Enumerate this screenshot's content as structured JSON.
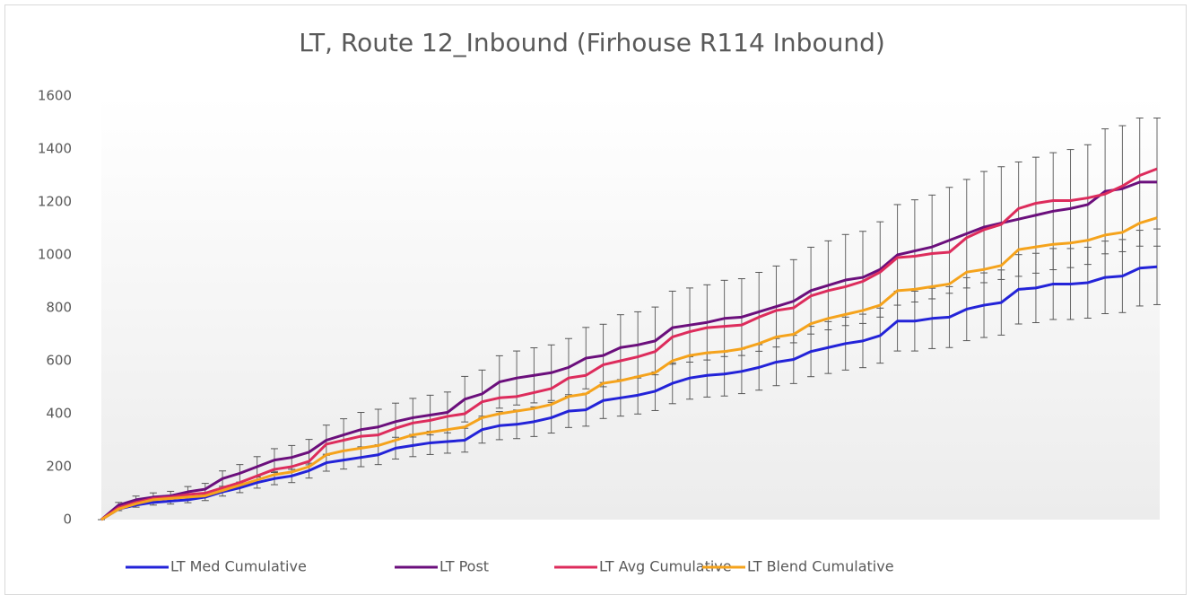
{
  "chart_data": {
    "type": "line",
    "title": "LT, Route 12_Inbound (Firhouse R114 Inbound)",
    "categories": [
      null,
      null,
      null,
      null,
      null,
      null,
      null,
      null,
      null,
      null,
      null,
      null,
      null,
      null,
      null,
      null,
      null,
      null,
      null,
      null,
      null,
      null,
      null,
      null,
      null,
      null,
      null,
      null,
      null,
      null,
      null,
      null,
      null,
      null,
      null,
      null,
      null,
      null,
      null,
      null,
      null,
      null,
      null,
      null,
      null,
      null,
      null,
      null,
      null,
      null,
      null,
      null,
      null,
      null,
      null,
      null,
      null,
      null,
      null,
      null,
      null,
      null
    ],
    "series": [
      {
        "name": "LT Med Cumulative",
        "color": "#2323d8",
        "values": [
          0,
          40,
          55,
          65,
          70,
          75,
          85,
          105,
          120,
          140,
          155,
          165,
          185,
          215,
          225,
          235,
          245,
          270,
          280,
          290,
          295,
          300,
          340,
          355,
          360,
          370,
          385,
          410,
          415,
          450,
          460,
          470,
          485,
          515,
          535,
          545,
          550,
          560,
          575,
          595,
          605,
          635,
          650,
          665,
          675,
          695,
          750,
          750,
          760,
          765,
          795,
          810,
          820,
          870,
          875,
          890,
          890,
          895,
          915,
          920,
          950,
          955
        ],
        "errors": [
          0,
          6,
          8,
          10,
          11,
          11,
          13,
          16,
          18,
          21,
          23,
          25,
          28,
          32,
          34,
          35,
          37,
          41,
          42,
          44,
          44,
          45,
          51,
          53,
          54,
          56,
          58,
          62,
          62,
          68,
          69,
          71,
          73,
          77,
          80,
          82,
          83,
          84,
          86,
          89,
          91,
          95,
          98,
          100,
          101,
          104,
          113,
          113,
          114,
          115,
          119,
          122,
          123,
          131,
          131,
          134,
          134,
          134,
          137,
          138,
          143,
          143
        ]
      },
      {
        "name": "LT Post",
        "color": "#6b0f7c",
        "values": [
          0,
          55,
          75,
          85,
          90,
          105,
          115,
          155,
          175,
          200,
          225,
          235,
          255,
          300,
          320,
          340,
          350,
          370,
          385,
          395,
          405,
          455,
          475,
          520,
          535,
          545,
          555,
          575,
          610,
          620,
          650,
          660,
          675,
          725,
          735,
          745,
          760,
          765,
          785,
          805,
          825,
          865,
          885,
          905,
          915,
          945,
          1000,
          1015,
          1030,
          1055,
          1080,
          1105,
          1120,
          1135,
          1150,
          1165,
          1175,
          1190,
          1240,
          1250,
          1275,
          1275
        ],
        "errors": [
          0,
          10,
          14,
          16,
          17,
          20,
          22,
          29,
          33,
          38,
          43,
          45,
          48,
          57,
          61,
          65,
          67,
          70,
          73,
          75,
          77,
          86,
          90,
          99,
          102,
          104,
          105,
          109,
          116,
          118,
          124,
          125,
          128,
          138,
          140,
          142,
          144,
          145,
          149,
          153,
          157,
          164,
          168,
          172,
          174,
          180,
          190,
          193,
          196,
          200,
          205,
          210,
          213,
          216,
          219,
          221,
          223,
          226,
          236,
          238,
          242,
          242
        ]
      },
      {
        "name": "LT Avg Cumulative",
        "color": "#dd2c5c",
        "values": [
          0,
          45,
          65,
          80,
          85,
          95,
          100,
          120,
          140,
          165,
          190,
          200,
          220,
          285,
          300,
          315,
          320,
          345,
          365,
          375,
          390,
          400,
          445,
          460,
          465,
          480,
          495,
          535,
          545,
          585,
          600,
          615,
          635,
          690,
          710,
          725,
          730,
          735,
          765,
          790,
          800,
          845,
          865,
          880,
          900,
          935,
          990,
          995,
          1005,
          1010,
          1065,
          1095,
          1115,
          1175,
          1195,
          1205,
          1205,
          1215,
          1230,
          1260,
          1300,
          1325
        ]
      },
      {
        "name": "LT Blend Cumulative",
        "color": "#f5a31c",
        "values": [
          0,
          40,
          60,
          75,
          80,
          85,
          90,
          110,
          130,
          150,
          170,
          180,
          200,
          245,
          260,
          270,
          280,
          300,
          320,
          330,
          340,
          350,
          385,
          400,
          410,
          420,
          435,
          465,
          475,
          515,
          525,
          540,
          555,
          600,
          620,
          630,
          635,
          645,
          665,
          690,
          700,
          740,
          760,
          775,
          790,
          810,
          865,
          870,
          880,
          890,
          935,
          945,
          960,
          1020,
          1030,
          1040,
          1045,
          1055,
          1075,
          1085,
          1120,
          1140
        ]
      }
    ],
    "ylim": [
      0,
      1600
    ],
    "yticks": [
      0,
      200,
      400,
      600,
      800,
      1000,
      1200,
      1400,
      1600
    ],
    "legend": "bottom"
  }
}
